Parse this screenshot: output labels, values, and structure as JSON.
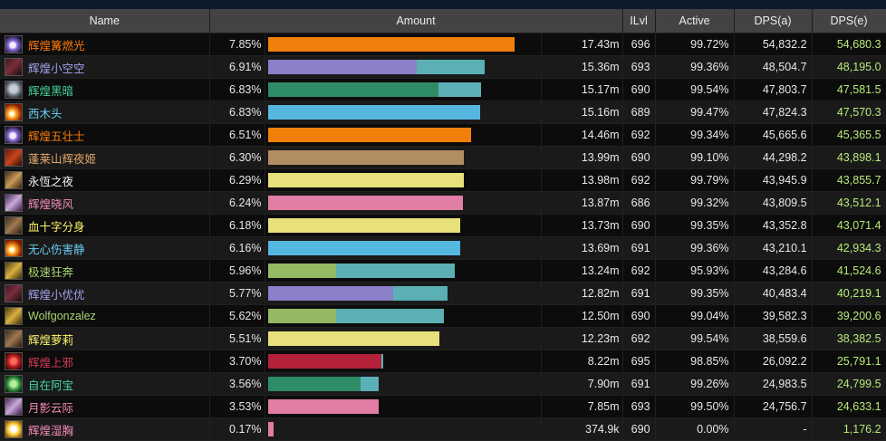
{
  "columns": [
    "Name",
    "Amount",
    "ILvl",
    "Active",
    "DPS(a)",
    "DPS(e)"
  ],
  "rows": [
    {
      "name": "辉煌篝燃光",
      "pct": "7.85%",
      "amount": "17.43m",
      "ilvl": "696",
      "active": "99.72%",
      "dps_a": "54,832.2",
      "dps_e": "54,680.3",
      "name_color": "c-orange",
      "icon": "shadow-bolt-icon",
      "bar_frac": 0.905,
      "bar_color": "#f07f0c",
      "bar2_frac": 0.0,
      "bar2_color": ""
    },
    {
      "name": "辉煌小空空",
      "pct": "6.91%",
      "amount": "15.36m",
      "ilvl": "693",
      "active": "99.36%",
      "dps_a": "48,504.7",
      "dps_e": "48,195.0",
      "name_color": "c-purple",
      "icon": "demon-hunter-icon",
      "bar_frac": 0.545,
      "bar_color": "#8b7fc9",
      "bar2_frac": 0.25,
      "bar2_color": "#5ab0b5"
    },
    {
      "name": "辉煌黑暗",
      "pct": "6.83%",
      "amount": "15.17m",
      "ilvl": "690",
      "active": "99.54%",
      "dps_a": "47,803.7",
      "dps_e": "47,581.5",
      "name_color": "c-green",
      "icon": "wolf-icon",
      "bar_frac": 0.625,
      "bar_color": "#2e8c67",
      "bar2_frac": 0.155,
      "bar2_color": "#5ab0b5"
    },
    {
      "name": "西木头",
      "pct": "6.83%",
      "amount": "15.16m",
      "ilvl": "689",
      "active": "99.47%",
      "dps_a": "47,824.3",
      "dps_e": "47,570.3",
      "name_color": "c-blue",
      "icon": "fireball-icon",
      "bar_frac": 0.78,
      "bar_color": "#55b7e0",
      "bar2_frac": 0.0,
      "bar2_color": ""
    },
    {
      "name": "辉煌五壮士",
      "pct": "6.51%",
      "amount": "14.46m",
      "ilvl": "692",
      "active": "99.34%",
      "dps_a": "45,665.6",
      "dps_e": "45,365.5",
      "name_color": "c-orange",
      "icon": "shadow-bolt-icon",
      "bar_frac": 0.745,
      "bar_color": "#f07f0c",
      "bar2_frac": 0.0,
      "bar2_color": ""
    },
    {
      "name": "蓬莱山辉夜姬",
      "pct": "6.30%",
      "amount": "13.99m",
      "ilvl": "690",
      "active": "99.10%",
      "dps_a": "44,298.2",
      "dps_e": "43,898.1",
      "name_color": "c-tan",
      "icon": "warrior-icon",
      "bar_frac": 0.72,
      "bar_color": "#b28d62",
      "bar2_frac": 0.0,
      "bar2_color": ""
    },
    {
      "name": "永恆之夜",
      "pct": "6.29%",
      "amount": "13.98m",
      "ilvl": "692",
      "active": "99.79%",
      "dps_a": "43,945.9",
      "dps_e": "43,855.7",
      "name_color": "c-white",
      "icon": "priest-icon",
      "bar_frac": 0.72,
      "bar_color": "#e8e07a",
      "bar2_frac": 0.0,
      "bar2_color": ""
    },
    {
      "name": "辉煌晓风",
      "pct": "6.24%",
      "amount": "13.87m",
      "ilvl": "686",
      "active": "99.32%",
      "dps_a": "43,809.5",
      "dps_e": "43,512.1",
      "name_color": "c-pink",
      "icon": "paladin-icon",
      "bar_frac": 0.715,
      "bar_color": "#e07ea6",
      "bar2_frac": 0.0,
      "bar2_color": ""
    },
    {
      "name": "血十字分身",
      "pct": "6.18%",
      "amount": "13.73m",
      "ilvl": "690",
      "active": "99.35%",
      "dps_a": "43,352.8",
      "dps_e": "43,071.4",
      "name_color": "c-yellow",
      "icon": "rogue-icon",
      "bar_frac": 0.707,
      "bar_color": "#e8e07a",
      "bar2_frac": 0.0,
      "bar2_color": ""
    },
    {
      "name": "无心伤害静",
      "pct": "6.16%",
      "amount": "13.69m",
      "ilvl": "691",
      "active": "99.36%",
      "dps_a": "43,210.1",
      "dps_e": "42,934.3",
      "name_color": "c-blue",
      "icon": "fireball-icon",
      "bar_frac": 0.705,
      "bar_color": "#55b7e0",
      "bar2_frac": 0.0,
      "bar2_color": ""
    },
    {
      "name": "极速狂奔",
      "pct": "5.96%",
      "amount": "13.24m",
      "ilvl": "692",
      "active": "95.93%",
      "dps_a": "43,284.6",
      "dps_e": "41,524.6",
      "name_color": "c-lime",
      "icon": "hunter-icon",
      "bar_frac": 0.25,
      "bar_color": "#95b862",
      "bar2_frac": 0.435,
      "bar2_color": "#5ab0b5"
    },
    {
      "name": "辉煌小优优",
      "pct": "5.77%",
      "amount": "12.82m",
      "ilvl": "691",
      "active": "99.35%",
      "dps_a": "40,483.4",
      "dps_e": "40,219.1",
      "name_color": "c-purple",
      "icon": "demon-hunter-icon",
      "bar_frac": 0.46,
      "bar_color": "#8b7fc9",
      "bar2_frac": 0.2,
      "bar2_color": "#5ab0b5"
    },
    {
      "name": "Wolfgonzalez",
      "pct": "5.62%",
      "amount": "12.50m",
      "ilvl": "690",
      "active": "99.04%",
      "dps_a": "39,582.3",
      "dps_e": "39,200.6",
      "name_color": "c-lime",
      "icon": "hunter-icon",
      "bar_frac": 0.25,
      "bar_color": "#95b862",
      "bar2_frac": 0.395,
      "bar2_color": "#5ab0b5"
    },
    {
      "name": "辉煌萝莉",
      "pct": "5.51%",
      "amount": "12.23m",
      "ilvl": "692",
      "active": "99.54%",
      "dps_a": "38,559.6",
      "dps_e": "38,382.5",
      "name_color": "c-yellow",
      "icon": "rogue-icon",
      "bar_frac": 0.63,
      "bar_color": "#e8e07a",
      "bar2_frac": 0.0,
      "bar2_color": ""
    },
    {
      "name": "辉煌上邪",
      "pct": "3.70%",
      "amount": "8.22m",
      "ilvl": "695",
      "active": "98.85%",
      "dps_a": "26,092.2",
      "dps_e": "25,791.1",
      "name_color": "c-red",
      "icon": "death-knight-icon",
      "bar_frac": 0.415,
      "bar_color": "#b3213b",
      "bar2_frac": 0.008,
      "bar2_color": "#5ab0b5"
    },
    {
      "name": "自在阿宝",
      "pct": "3.56%",
      "amount": "7.90m",
      "ilvl": "691",
      "active": "99.26%",
      "dps_a": "24,983.5",
      "dps_e": "24,799.5",
      "name_color": "c-green",
      "icon": "monk-icon",
      "bar_frac": 0.34,
      "bar_color": "#2e8c67",
      "bar2_frac": 0.065,
      "bar2_color": "#5ab0b5"
    },
    {
      "name": "月影云际",
      "pct": "3.53%",
      "amount": "7.85m",
      "ilvl": "693",
      "active": "99.50%",
      "dps_a": "24,756.7",
      "dps_e": "24,633.1",
      "name_color": "c-pink",
      "icon": "paladin-icon",
      "bar_frac": 0.405,
      "bar_color": "#e07ea6",
      "bar2_frac": 0.0,
      "bar2_color": ""
    },
    {
      "name": "辉煌湿胸",
      "pct": "0.17%",
      "amount": "374.9k",
      "ilvl": "690",
      "active": "0.00%",
      "dps_a": "-",
      "dps_e": "1,176.2",
      "name_color": "c-pink",
      "icon": "holy-light-icon",
      "bar_frac": 0.02,
      "bar_color": "#e07ea6",
      "bar2_frac": 0.0,
      "bar2_color": ""
    }
  ],
  "icon_styles": {
    "shadow-bolt-icon": "radial-gradient(circle at 45% 55%, #f4eaff 0 3px, #8a6fd6 5px, #1a1030 11px)",
    "demon-hunter-icon": "linear-gradient(135deg, #3a1820 0%, #7a2e3c 45%, #1a0c10 100%)",
    "wolf-icon": "radial-gradient(circle at 50% 45%, #c8ccd4 0 4px, #5a6470 8px, #1c2028 12px)",
    "fireball-icon": "radial-gradient(circle at 40% 60%, #ffffd0 0 2px, #ff9a20 5px, #7a1a00 11px)",
    "warrior-icon": "linear-gradient(135deg, #6a1408 0%, #c8461e 50%, #2a0804 100%)",
    "priest-icon": "linear-gradient(135deg, #4a2a14 0%, #c89a5a 50%, #3a1e0c 100%)",
    "paladin-icon": "linear-gradient(135deg, #4a2a5a 0%, #c8a8d8 50%, #3a1a4a 100%)",
    "rogue-icon": "linear-gradient(135deg, #3a2a1a 0%, #a07850 50%, #2a1a0c 100%)",
    "hunter-icon": "linear-gradient(135deg, #4a3a10 0%, #d8b040 50%, #3a2a08 100%)",
    "death-knight-icon": "radial-gradient(circle at 50% 50%, #ff6a5a 0 3px, #b81e1e 6px, #3a0606 11px)",
    "monk-icon": "radial-gradient(circle at 50% 50%, #b8f0a0 0 3px, #2a8a3a 7px, #0a2a10 11px)",
    "holy-light-icon": "radial-gradient(circle at 50% 50%, #ffffff 0 3px, #ffd040 6px, #8a5a08 11px)"
  }
}
